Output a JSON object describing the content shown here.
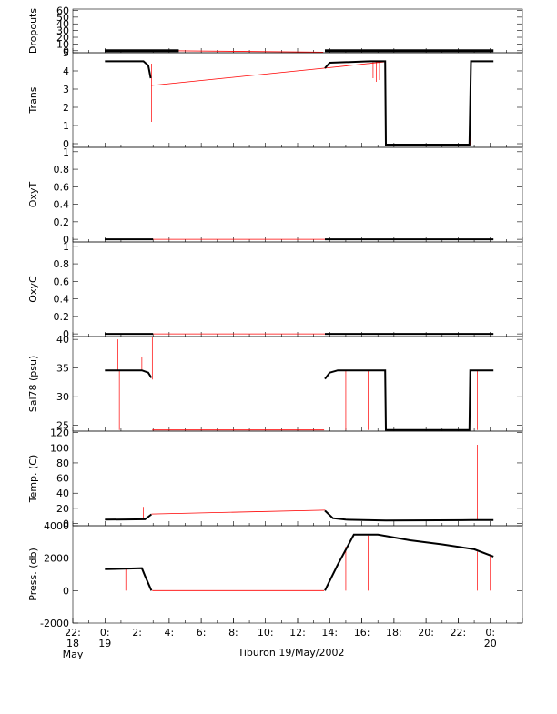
{
  "chart_data": {
    "type": "line",
    "xlabel": "Tiburon 19/May/2002",
    "x_range_hours": [
      -2,
      26
    ],
    "x_ticks": [
      {
        "h": -2,
        "l1": "22:",
        "l2": "18",
        "l3": "May"
      },
      {
        "h": 0,
        "l1": "0:",
        "l2": "19",
        "l3": ""
      },
      {
        "h": 2,
        "l1": "2:",
        "l2": "",
        "l3": ""
      },
      {
        "h": 4,
        "l1": "4:",
        "l2": "",
        "l3": ""
      },
      {
        "h": 6,
        "l1": "6:",
        "l2": "",
        "l3": ""
      },
      {
        "h": 8,
        "l1": "8:",
        "l2": "",
        "l3": ""
      },
      {
        "h": 10,
        "l1": "10:",
        "l2": "",
        "l3": ""
      },
      {
        "h": 12,
        "l1": "12:",
        "l2": "",
        "l3": ""
      },
      {
        "h": 14,
        "l1": "14:",
        "l2": "",
        "l3": ""
      },
      {
        "h": 16,
        "l1": "16:",
        "l2": "",
        "l3": ""
      },
      {
        "h": 18,
        "l1": "18:",
        "l2": "",
        "l3": ""
      },
      {
        "h": 20,
        "l1": "20:",
        "l2": "",
        "l3": ""
      },
      {
        "h": 22,
        "l1": "22:",
        "l2": "",
        "l3": ""
      },
      {
        "h": 24,
        "l1": "0:",
        "l2": "20",
        "l3": ""
      }
    ],
    "panels": [
      {
        "key": "dropouts",
        "ylabel": "Dropouts",
        "ylim": [
          -3,
          62
        ],
        "ticks": [
          0,
          10,
          20,
          30,
          40,
          50,
          60
        ],
        "black": [
          [
            0,
            0.0,
            0.5
          ],
          [
            13.7,
            0.0,
            0.5
          ],
          [
            16,
            0.0,
            0.5
          ],
          [
            20,
            0.0,
            0.5
          ],
          [
            24,
            0.0,
            0.5
          ]
        ],
        "red": [
          [
            2.95,
            0.3
          ],
          [
            13.6,
            -2.2
          ]
        ],
        "spikes": []
      },
      {
        "key": "trans",
        "ylabel": "Trans",
        "ylim": [
          -0.2,
          5.0
        ],
        "ticks": [
          0,
          1,
          2,
          3,
          4,
          5
        ],
        "black": [
          [
            0,
            4.53
          ],
          [
            2.4,
            4.53
          ],
          [
            2.7,
            4.3
          ],
          [
            2.85,
            3.6
          ],
          [
            13.7,
            4.15
          ],
          [
            14.0,
            4.45
          ],
          [
            16.5,
            4.53
          ],
          [
            17.45,
            4.53
          ],
          [
            17.5,
            -0.05
          ],
          [
            22.7,
            -0.05
          ],
          [
            22.8,
            4.53
          ],
          [
            24.2,
            4.53
          ]
        ],
        "red": [
          [
            2.9,
            3.2
          ],
          [
            13.65,
            4.15
          ],
          [
            17.45,
            4.5
          ],
          [
            17.5,
            -0.05
          ],
          [
            22.75,
            -0.05
          ],
          [
            22.8,
            4.5
          ]
        ],
        "spikes": [
          [
            2.9,
            4.4,
            1.2
          ],
          [
            16.7,
            4.5,
            3.6
          ],
          [
            16.9,
            4.5,
            3.4
          ],
          [
            17.1,
            4.5,
            3.5
          ]
        ]
      },
      {
        "key": "oxyt",
        "ylabel": "OxyT",
        "ylim": [
          -0.03,
          1.05
        ],
        "ticks": [
          0.0,
          0.2,
          0.4,
          0.6,
          0.8,
          1.0
        ],
        "black": [
          [
            0,
            0.0
          ],
          [
            3.0,
            0.0
          ],
          [
            13.7,
            0.0
          ],
          [
            24.2,
            0.0
          ]
        ],
        "red": [
          [
            3.0,
            0.0
          ],
          [
            13.7,
            0.0
          ]
        ],
        "spikes": []
      },
      {
        "key": "oxyc",
        "ylabel": "OxyC",
        "ylim": [
          -0.03,
          1.05
        ],
        "ticks": [
          0.0,
          0.2,
          0.4,
          0.6,
          0.8,
          1.0
        ],
        "black": [
          [
            0,
            0.0
          ],
          [
            3.0,
            0.0
          ],
          [
            13.7,
            0.0
          ],
          [
            24.2,
            0.0
          ]
        ],
        "red": [
          [
            3.0,
            0.0
          ],
          [
            13.7,
            0.0
          ]
        ],
        "spikes": []
      },
      {
        "key": "sal",
        "ylabel": "Sal78 (psu)",
        "ylim": [
          24,
          40.5
        ],
        "ticks": [
          25,
          30,
          35,
          40
        ],
        "black": [
          [
            0,
            34.6
          ],
          [
            2.3,
            34.6
          ],
          [
            2.7,
            34.2
          ],
          [
            2.9,
            33.3
          ],
          [
            13.7,
            33.1
          ],
          [
            14.0,
            34.2
          ],
          [
            14.5,
            34.6
          ],
          [
            17.45,
            34.6
          ],
          [
            17.5,
            24.2
          ],
          [
            22.7,
            24.2
          ],
          [
            22.75,
            34.6
          ],
          [
            24.2,
            34.6
          ]
        ],
        "red": [
          [
            2.95,
            24.2
          ],
          [
            13.65,
            24.2
          ]
        ],
        "spikes": [
          [
            0.8,
            34.6,
            40
          ],
          [
            0.9,
            34.6,
            24.2
          ],
          [
            2.0,
            34.6,
            24.2
          ],
          [
            2.3,
            34.6,
            37
          ],
          [
            2.95,
            33,
            40.5
          ],
          [
            15.2,
            34.6,
            39.5
          ],
          [
            15.0,
            34.6,
            24.2
          ],
          [
            16.4,
            34.6,
            24.2
          ],
          [
            23.2,
            34.6,
            24.2
          ]
        ]
      },
      {
        "key": "temp",
        "ylabel": "Temp. (C)",
        "ylim": [
          -3,
          122
        ],
        "ticks": [
          0,
          20,
          40,
          60,
          80,
          100,
          120
        ],
        "black": [
          [
            0,
            5
          ],
          [
            2.5,
            5.5
          ],
          [
            2.9,
            12
          ],
          [
            13.7,
            17
          ],
          [
            14.2,
            7
          ],
          [
            15,
            5
          ],
          [
            17.5,
            4
          ],
          [
            22.8,
            4.5
          ],
          [
            24.2,
            4.5
          ]
        ],
        "red": [
          [
            2.9,
            12.5
          ],
          [
            13.7,
            17.5
          ]
        ],
        "spikes": [
          [
            2.4,
            6,
            22
          ],
          [
            23.2,
            5,
            104
          ]
        ]
      },
      {
        "key": "press",
        "ylabel": "Press. (db)",
        "ylim": [
          -2000,
          4000
        ],
        "ticks": [
          -2000,
          0,
          2000,
          4000
        ],
        "black": [
          [
            0,
            1320
          ],
          [
            2.3,
            1380
          ],
          [
            2.5,
            900
          ],
          [
            2.9,
            0
          ],
          [
            13.7,
            0
          ],
          [
            14.5,
            1600
          ],
          [
            15.5,
            3450
          ],
          [
            17,
            3450
          ],
          [
            19,
            3100
          ],
          [
            21,
            2850
          ],
          [
            23,
            2550
          ],
          [
            24.2,
            2100
          ]
        ],
        "red": [
          [
            2.95,
            0
          ],
          [
            13.65,
            0
          ]
        ],
        "spikes": [
          [
            0.7,
            1300,
            0
          ],
          [
            1.3,
            1320,
            0
          ],
          [
            2.0,
            1380,
            0
          ],
          [
            15.0,
            2700,
            0
          ],
          [
            16.4,
            3400,
            0
          ],
          [
            23.2,
            2400,
            0
          ],
          [
            24.0,
            2200,
            0
          ]
        ]
      }
    ]
  }
}
